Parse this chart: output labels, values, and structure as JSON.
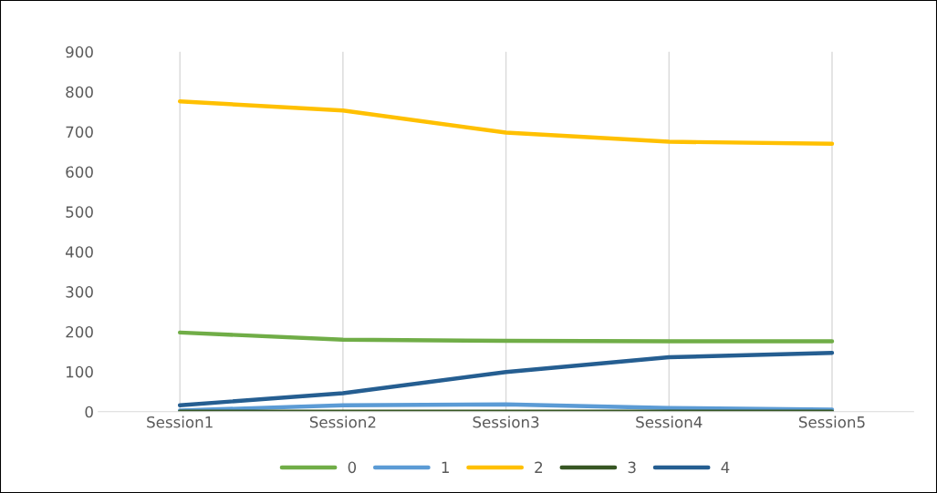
{
  "chart_data": {
    "type": "line",
    "categories": [
      "Session1",
      "Session2",
      "Session3",
      "Session4",
      "Session5"
    ],
    "series": [
      {
        "name": "0",
        "color": "#70ad47",
        "values": [
          198,
          180,
          177,
          176,
          176
        ]
      },
      {
        "name": "1",
        "color": "#5b9bd5",
        "values": [
          3,
          16,
          18,
          9,
          5
        ]
      },
      {
        "name": "2",
        "color": "#ffc000",
        "values": [
          776,
          753,
          698,
          675,
          670
        ]
      },
      {
        "name": "3",
        "color": "#375623",
        "values": [
          0,
          0,
          0,
          0,
          0
        ]
      },
      {
        "name": "4",
        "color": "#255e91",
        "values": [
          16,
          46,
          99,
          136,
          147
        ]
      }
    ],
    "ylim": [
      0,
      900
    ],
    "yticks": [
      0,
      100,
      200,
      300,
      400,
      500,
      600,
      700,
      800,
      900
    ],
    "grid": "x",
    "legend": "bottom",
    "marker": "none",
    "line_style": "solid"
  }
}
